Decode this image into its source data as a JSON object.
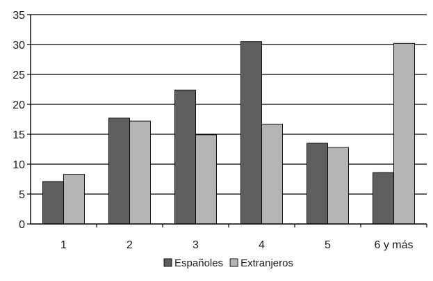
{
  "chart_data": {
    "type": "bar",
    "categories": [
      "1",
      "2",
      "3",
      "4",
      "5",
      "6 y más"
    ],
    "series": [
      {
        "name": "Españoles",
        "values": [
          7.1,
          17.7,
          22.4,
          30.5,
          13.5,
          8.6
        ],
        "color": "#5e5e5e"
      },
      {
        "name": "Extranjeros",
        "values": [
          8.3,
          17.2,
          14.9,
          16.7,
          12.8,
          30.2
        ],
        "color": "#b4b4b4"
      }
    ],
    "ylim": [
      0,
      35
    ],
    "yticks": [
      0,
      5,
      10,
      15,
      20,
      25,
      30,
      35
    ],
    "grid": true,
    "legend_position": "bottom-center",
    "title": "",
    "xlabel": "",
    "ylabel": ""
  }
}
